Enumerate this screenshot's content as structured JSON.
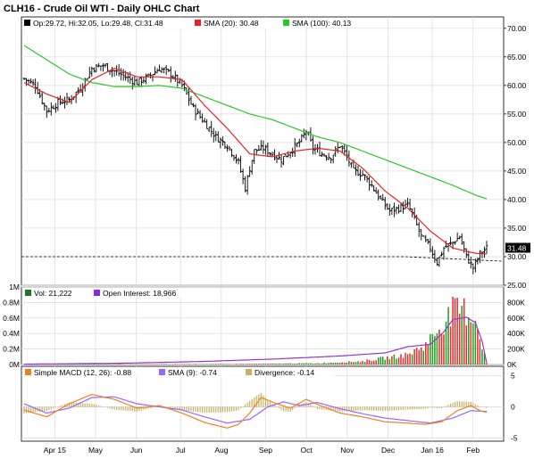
{
  "chart_data": {
    "title": "CLH16 - Crude Oil WTI - Daily OHLC Chart",
    "price_panel": {
      "type": "ohlc",
      "ylim": [
        25,
        72
      ],
      "yticks": [
        "70.00",
        "65.00",
        "60.00",
        "55.00",
        "50.00",
        "45.00",
        "40.00",
        "35.00",
        "30.00",
        "25.00"
      ],
      "ytick_values": [
        70,
        65,
        60,
        55,
        50,
        45,
        40,
        35,
        30,
        25
      ],
      "legend": [
        {
          "label": "Op:29.72, Hi:32.05, Lo:29.48, Cl:31.48",
          "color": "#000000"
        },
        {
          "label": "SMA (20): 30.48",
          "color": "#e32525"
        },
        {
          "label": "SMA (100): 40.13",
          "color": "#29c829"
        }
      ],
      "last_price_tag": "31.48",
      "last_price": 31.48,
      "reference_line": 30.0,
      "trend_line": {
        "start": 30.0,
        "end": 29.2
      },
      "close_keypoints": [
        [
          0,
          61.2
        ],
        [
          5,
          60.0
        ],
        [
          10,
          55.5
        ],
        [
          15,
          57.0
        ],
        [
          20,
          57.5
        ],
        [
          25,
          59.5
        ],
        [
          30,
          63.0
        ],
        [
          35,
          63.5
        ],
        [
          40,
          62.5
        ],
        [
          45,
          61.5
        ],
        [
          50,
          60.5
        ],
        [
          55,
          61.5
        ],
        [
          60,
          63.0
        ],
        [
          65,
          62.0
        ],
        [
          70,
          60.0
        ],
        [
          75,
          56.0
        ],
        [
          80,
          53.5
        ],
        [
          85,
          51.0
        ],
        [
          90,
          49.5
        ],
        [
          95,
          46.5
        ],
        [
          98,
          42.0
        ],
        [
          100,
          45.5
        ],
        [
          102,
          48.5
        ],
        [
          106,
          49.0
        ],
        [
          110,
          48.0
        ],
        [
          114,
          47.0
        ],
        [
          118,
          48.5
        ],
        [
          122,
          50.0
        ],
        [
          125,
          52.0
        ],
        [
          128,
          49.0
        ],
        [
          132,
          48.0
        ],
        [
          136,
          47.5
        ],
        [
          140,
          49.5
        ],
        [
          143,
          47.5
        ],
        [
          146,
          45.0
        ],
        [
          150,
          44.5
        ],
        [
          154,
          42.5
        ],
        [
          158,
          40.0
        ],
        [
          162,
          38.0
        ],
        [
          166,
          38.5
        ],
        [
          170,
          39.0
        ],
        [
          172,
          37.5
        ],
        [
          176,
          33.5
        ],
        [
          180,
          31.5
        ],
        [
          183,
          29.0
        ],
        [
          186,
          31.5
        ],
        [
          190,
          32.5
        ],
        [
          193,
          33.5
        ],
        [
          196,
          30.0
        ],
        [
          199,
          28.0
        ],
        [
          202,
          30.5
        ],
        [
          205,
          31.48
        ]
      ],
      "sma20_keypoints": [
        [
          0,
          60.5
        ],
        [
          10,
          58.5
        ],
        [
          20,
          57.0
        ],
        [
          30,
          61.0
        ],
        [
          40,
          63.0
        ],
        [
          50,
          61.5
        ],
        [
          60,
          61.5
        ],
        [
          70,
          61.0
        ],
        [
          80,
          56.5
        ],
        [
          90,
          52.5
        ],
        [
          100,
          48.0
        ],
        [
          110,
          47.5
        ],
        [
          120,
          48.5
        ],
        [
          130,
          49.0
        ],
        [
          140,
          48.5
        ],
        [
          150,
          45.5
        ],
        [
          160,
          41.5
        ],
        [
          170,
          38.5
        ],
        [
          180,
          34.5
        ],
        [
          190,
          31.5
        ],
        [
          200,
          30.6
        ],
        [
          205,
          30.48
        ]
      ],
      "sma100_keypoints": [
        [
          0,
          67.0
        ],
        [
          10,
          64.5
        ],
        [
          20,
          62.0
        ],
        [
          30,
          60.5
        ],
        [
          40,
          59.8
        ],
        [
          50,
          59.8
        ],
        [
          60,
          60.0
        ],
        [
          70,
          59.5
        ],
        [
          80,
          58.0
        ],
        [
          90,
          56.5
        ],
        [
          100,
          55.0
        ],
        [
          110,
          54.0
        ],
        [
          120,
          52.5
        ],
        [
          130,
          51.0
        ],
        [
          140,
          50.0
        ],
        [
          150,
          48.5
        ],
        [
          160,
          47.0
        ],
        [
          170,
          45.5
        ],
        [
          180,
          44.0
        ],
        [
          190,
          42.5
        ],
        [
          200,
          40.8
        ],
        [
          205,
          40.13
        ]
      ]
    },
    "volume_panel": {
      "type": "bar",
      "left_ticks": [
        "1M",
        "0.8M",
        "0.6M",
        "0.4M",
        "0.2M",
        "0M"
      ],
      "left_tick_values": [
        1.0,
        0.8,
        0.6,
        0.4,
        0.2,
        0.0
      ],
      "right_ticks": [
        "800K",
        "600K",
        "400K",
        "200K",
        "0K"
      ],
      "right_tick_values": [
        800,
        600,
        400,
        200,
        0
      ],
      "legend": [
        {
          "label": "Vol: 21,222",
          "color": "#1f7a1f"
        },
        {
          "label": "Open Interest: 18,966",
          "color": "#8a2be2"
        }
      ],
      "volume_unit": "M",
      "volume_keypoints": [
        [
          0,
          0.005
        ],
        [
          90,
          0.008
        ],
        [
          130,
          0.02
        ],
        [
          150,
          0.05
        ],
        [
          160,
          0.1
        ],
        [
          170,
          0.15
        ],
        [
          178,
          0.3
        ],
        [
          185,
          0.6
        ],
        [
          190,
          0.8
        ],
        [
          195,
          0.82
        ],
        [
          200,
          0.7
        ],
        [
          205,
          0.021
        ]
      ],
      "open_interest_unit": "K",
      "open_interest_keypoints": [
        [
          0,
          5
        ],
        [
          40,
          15
        ],
        [
          80,
          40
        ],
        [
          110,
          70
        ],
        [
          140,
          110
        ],
        [
          160,
          150
        ],
        [
          170,
          230
        ],
        [
          180,
          260
        ],
        [
          186,
          420
        ],
        [
          190,
          580
        ],
        [
          196,
          610
        ],
        [
          200,
          540
        ],
        [
          203,
          300
        ],
        [
          205,
          19
        ]
      ]
    },
    "macd_panel": {
      "type": "line",
      "ylim": [
        -5.5,
        6.5
      ],
      "yticks": [
        "5",
        "0",
        "-5"
      ],
      "ytick_values": [
        5,
        0,
        -5
      ],
      "legend": [
        {
          "label": "Simple MACD (12, 26): -0.88",
          "color": "#f08020"
        },
        {
          "label": "SMA (9): -0.74",
          "color": "#9966ff"
        },
        {
          "label": "Divergence: -0.14",
          "color": "#c8b060"
        }
      ],
      "macd_keypoints": [
        [
          0,
          -0.5
        ],
        [
          10,
          -1.6
        ],
        [
          20,
          0.5
        ],
        [
          30,
          2.0
        ],
        [
          40,
          1.2
        ],
        [
          50,
          -0.2
        ],
        [
          60,
          0.2
        ],
        [
          70,
          -1.0
        ],
        [
          80,
          -2.5
        ],
        [
          90,
          -3.4
        ],
        [
          95,
          -2.8
        ],
        [
          100,
          -1.0
        ],
        [
          105,
          1.5
        ],
        [
          112,
          0.5
        ],
        [
          118,
          -0.2
        ],
        [
          125,
          1.2
        ],
        [
          130,
          0.4
        ],
        [
          140,
          -1.0
        ],
        [
          150,
          -1.6
        ],
        [
          160,
          -2.4
        ],
        [
          170,
          -2.6
        ],
        [
          178,
          -2.8
        ],
        [
          185,
          -2.4
        ],
        [
          192,
          -0.6
        ],
        [
          198,
          0.2
        ],
        [
          202,
          -0.6
        ],
        [
          205,
          -0.88
        ]
      ],
      "signal_keypoints": [
        [
          0,
          0.5
        ],
        [
          10,
          -1.0
        ],
        [
          20,
          -0.2
        ],
        [
          30,
          1.5
        ],
        [
          40,
          1.6
        ],
        [
          50,
          0.5
        ],
        [
          60,
          0.0
        ],
        [
          70,
          -0.5
        ],
        [
          80,
          -1.6
        ],
        [
          90,
          -2.6
        ],
        [
          100,
          -2.0
        ],
        [
          108,
          0.0
        ],
        [
          115,
          0.8
        ],
        [
          122,
          0.2
        ],
        [
          130,
          0.7
        ],
        [
          140,
          -0.3
        ],
        [
          150,
          -1.1
        ],
        [
          160,
          -1.8
        ],
        [
          170,
          -2.2
        ],
        [
          180,
          -2.6
        ],
        [
          190,
          -1.8
        ],
        [
          198,
          -0.6
        ],
        [
          205,
          -0.74
        ]
      ]
    },
    "x_axis": {
      "labels": [
        "Apr 15",
        "May",
        "Jun",
        "Jul",
        "Aug",
        "Sep",
        "Oct",
        "Nov",
        "Dec",
        "Jan 16",
        "Feb"
      ],
      "label_positions": [
        9,
        21,
        33,
        46,
        58,
        71,
        83,
        95,
        107,
        120,
        132
      ],
      "n_periods": 206
    },
    "colors": {
      "price_bars": "#000000",
      "sma20": "#e32525",
      "sma100": "#29c829",
      "volume_up": "#1fa01f",
      "volume_down": "#e03030",
      "open_interest": "#9933cc",
      "macd": "#f08020",
      "signal": "#9966ff",
      "divergence": "#c8b060"
    }
  }
}
